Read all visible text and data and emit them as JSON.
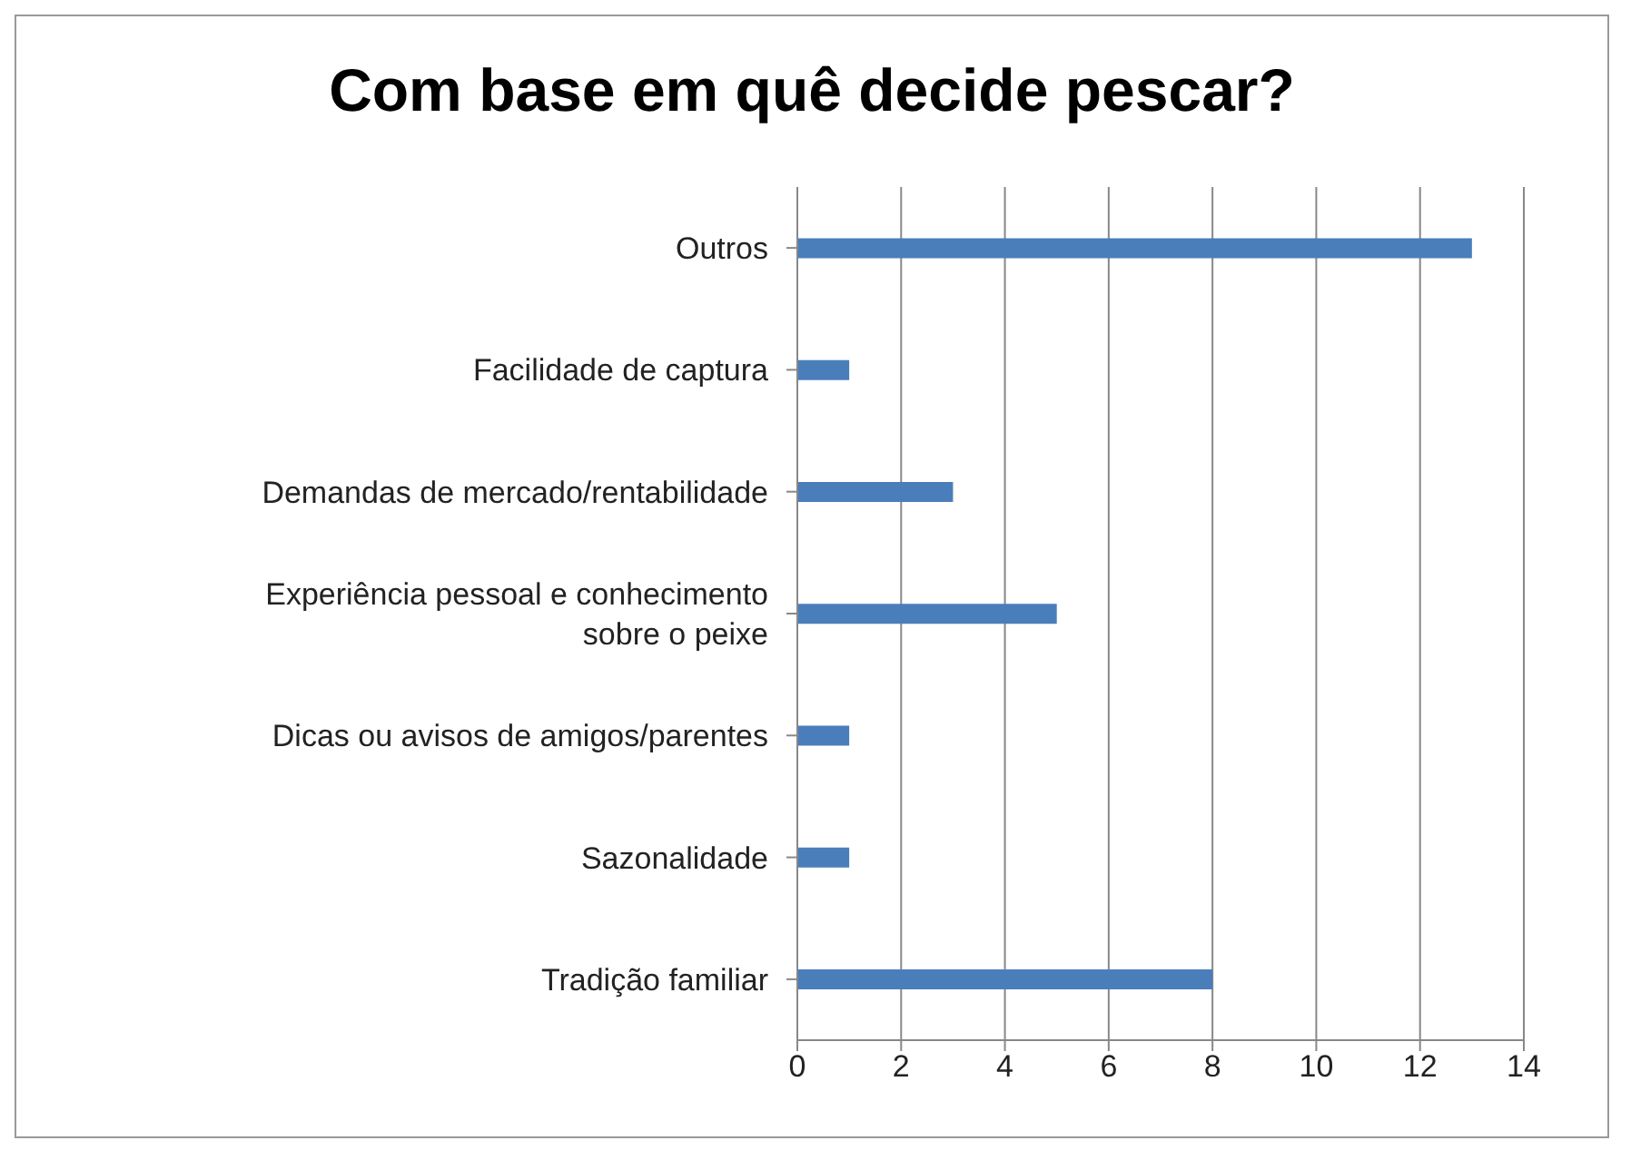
{
  "chart_data": {
    "type": "bar",
    "orientation": "horizontal",
    "title": "Com base em quê decide pescar?",
    "categories": [
      "Outros",
      "Facilidade de captura",
      "Demandas de mercado/rentabilidade",
      "Experiência pessoal e conhecimento sobre o peixe",
      "Dicas ou avisos de amigos/parentes",
      "Sazonalidade",
      "Tradição familiar"
    ],
    "values": [
      13,
      1,
      3,
      5,
      1,
      1,
      8
    ],
    "color": "#4a7ebb",
    "xlim": [
      0,
      14
    ],
    "xticks": [
      0,
      2,
      4,
      6,
      8,
      10,
      12,
      14
    ],
    "grid": "x"
  }
}
